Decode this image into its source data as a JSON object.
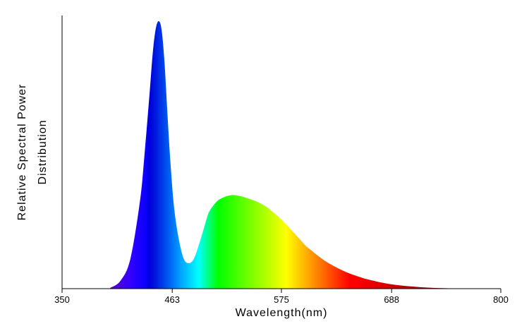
{
  "chart_data": {
    "type": "area",
    "xlabel": "Wavelength(nm)",
    "ylabel_lines": [
      "Relative Spectral Power",
      "Distribution"
    ],
    "xlim": [
      350,
      800
    ],
    "ylim": [
      0,
      1
    ],
    "x_ticks": [
      350,
      463,
      575,
      688,
      800
    ],
    "x_tick_labels": [
      "350",
      "463",
      "575",
      "688",
      "800"
    ],
    "y_ticks": [],
    "grid": false,
    "legend": "none",
    "fill": "spectral rainbow gradient (visible light colors by wavelength)",
    "series": [
      {
        "x": [
          350,
          395,
          400,
          410,
          420,
          430,
          435,
          440,
          443,
          446,
          449,
          452,
          455,
          458,
          461,
          465,
          470,
          475,
          480,
          485,
          490,
          495,
          500,
          505,
          510,
          515,
          520,
          525,
          530,
          535,
          540,
          545,
          550,
          555,
          560,
          565,
          570,
          575,
          580,
          585,
          590,
          595,
          600,
          605,
          610,
          615,
          620,
          630,
          640,
          650,
          660,
          670,
          680,
          690,
          700,
          710,
          720,
          730,
          740,
          750,
          760,
          770,
          780,
          790,
          800
        ],
        "values": [
          0,
          0,
          0.004,
          0.03,
          0.11,
          0.33,
          0.52,
          0.74,
          0.88,
          0.97,
          1.0,
          0.97,
          0.85,
          0.66,
          0.48,
          0.3,
          0.18,
          0.11,
          0.095,
          0.11,
          0.16,
          0.22,
          0.28,
          0.31,
          0.33,
          0.34,
          0.347,
          0.35,
          0.348,
          0.344,
          0.338,
          0.332,
          0.325,
          0.316,
          0.305,
          0.29,
          0.275,
          0.258,
          0.24,
          0.22,
          0.2,
          0.18,
          0.16,
          0.145,
          0.13,
          0.116,
          0.103,
          0.082,
          0.064,
          0.05,
          0.038,
          0.029,
          0.021,
          0.015,
          0.011,
          0.008,
          0.005,
          0.003,
          0.002,
          0.001,
          0.0005,
          0,
          0,
          0,
          0
        ]
      }
    ]
  }
}
